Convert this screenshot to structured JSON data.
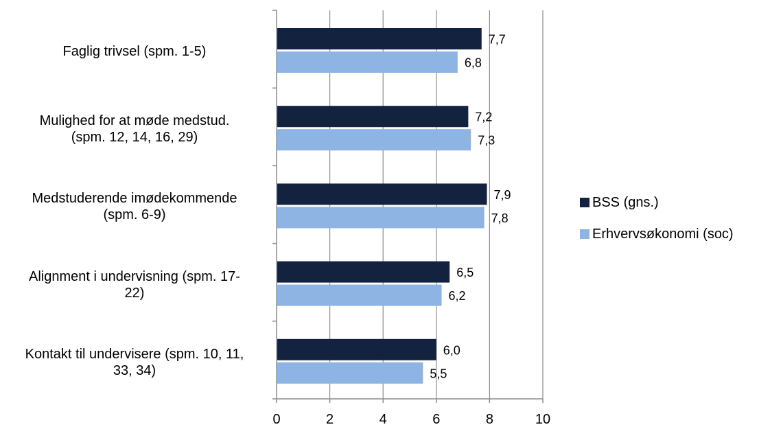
{
  "chart_data": {
    "type": "bar",
    "orientation": "horizontal",
    "categories": [
      "Faglig trivsel (spm. 1-5)",
      "Mulighed for at møde medstud. (spm. 12, 14, 16, 29)",
      "Medstuderende imødekommende (spm. 6-9)",
      "Alignment i undervisning (spm. 17-22)",
      "Kontakt til undervisere (spm. 10, 11, 33, 34)"
    ],
    "category_lines": [
      [
        "Faglig trivsel (spm. 1-5)"
      ],
      [
        "Mulighed for at møde medstud.",
        "(spm. 12, 14, 16, 29)"
      ],
      [
        "Medstuderende imødekommende",
        "(spm. 6-9)"
      ],
      [
        "Alignment i undervisning (spm. 17-",
        "22)"
      ],
      [
        "Kontakt til undervisere (spm. 10, 11,",
        "33, 34)"
      ]
    ],
    "series": [
      {
        "name": "BSS (gns.)",
        "color": "#13223f",
        "values": [
          7.7,
          7.2,
          7.9,
          6.5,
          6.0
        ],
        "labels": [
          "7,7",
          "7,2",
          "7,9",
          "6,5",
          "6,0"
        ]
      },
      {
        "name": "Erhvervsøkonomi (soc)",
        "color": "#8db4e2",
        "values": [
          6.8,
          7.3,
          7.8,
          6.2,
          5.5
        ],
        "labels": [
          "6,8",
          "7,3",
          "7,8",
          "6,2",
          "5,5"
        ]
      }
    ],
    "xlim": [
      0,
      10
    ],
    "xticks": [
      0,
      2,
      4,
      6,
      8,
      10
    ],
    "grid": true,
    "legend_position": "right",
    "title": "",
    "xlabel": "",
    "ylabel": ""
  }
}
